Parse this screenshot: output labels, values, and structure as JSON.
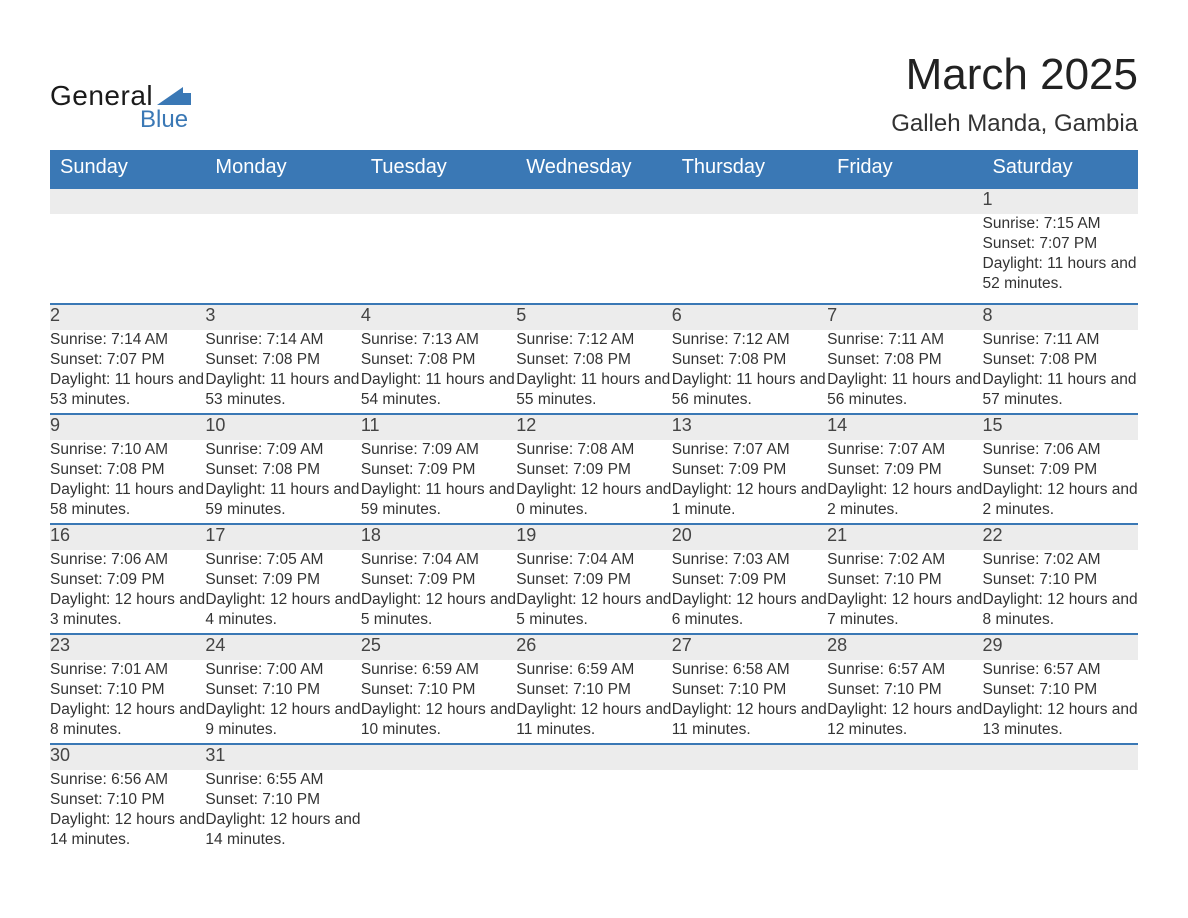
{
  "logo": {
    "text_general": "General",
    "text_blue": "Blue",
    "mark_color": "#3a78b5"
  },
  "title": "March 2025",
  "location": "Galleh Manda, Gambia",
  "colors": {
    "header_bg": "#3a78b5",
    "header_text": "#ffffff",
    "daynum_bg": "#ececec",
    "row_border": "#3a78b5",
    "body_text": "#333333",
    "page_bg": "#ffffff"
  },
  "day_headers": [
    "Sunday",
    "Monday",
    "Tuesday",
    "Wednesday",
    "Thursday",
    "Friday",
    "Saturday"
  ],
  "weeks": [
    [
      null,
      null,
      null,
      null,
      null,
      null,
      {
        "n": "1",
        "sunrise": "Sunrise: 7:15 AM",
        "sunset": "Sunset: 7:07 PM",
        "daylight": "Daylight: 11 hours and 52 minutes."
      }
    ],
    [
      {
        "n": "2",
        "sunrise": "Sunrise: 7:14 AM",
        "sunset": "Sunset: 7:07 PM",
        "daylight": "Daylight: 11 hours and 53 minutes."
      },
      {
        "n": "3",
        "sunrise": "Sunrise: 7:14 AM",
        "sunset": "Sunset: 7:08 PM",
        "daylight": "Daylight: 11 hours and 53 minutes."
      },
      {
        "n": "4",
        "sunrise": "Sunrise: 7:13 AM",
        "sunset": "Sunset: 7:08 PM",
        "daylight": "Daylight: 11 hours and 54 minutes."
      },
      {
        "n": "5",
        "sunrise": "Sunrise: 7:12 AM",
        "sunset": "Sunset: 7:08 PM",
        "daylight": "Daylight: 11 hours and 55 minutes."
      },
      {
        "n": "6",
        "sunrise": "Sunrise: 7:12 AM",
        "sunset": "Sunset: 7:08 PM",
        "daylight": "Daylight: 11 hours and 56 minutes."
      },
      {
        "n": "7",
        "sunrise": "Sunrise: 7:11 AM",
        "sunset": "Sunset: 7:08 PM",
        "daylight": "Daylight: 11 hours and 56 minutes."
      },
      {
        "n": "8",
        "sunrise": "Sunrise: 7:11 AM",
        "sunset": "Sunset: 7:08 PM",
        "daylight": "Daylight: 11 hours and 57 minutes."
      }
    ],
    [
      {
        "n": "9",
        "sunrise": "Sunrise: 7:10 AM",
        "sunset": "Sunset: 7:08 PM",
        "daylight": "Daylight: 11 hours and 58 minutes."
      },
      {
        "n": "10",
        "sunrise": "Sunrise: 7:09 AM",
        "sunset": "Sunset: 7:08 PM",
        "daylight": "Daylight: 11 hours and 59 minutes."
      },
      {
        "n": "11",
        "sunrise": "Sunrise: 7:09 AM",
        "sunset": "Sunset: 7:09 PM",
        "daylight": "Daylight: 11 hours and 59 minutes."
      },
      {
        "n": "12",
        "sunrise": "Sunrise: 7:08 AM",
        "sunset": "Sunset: 7:09 PM",
        "daylight": "Daylight: 12 hours and 0 minutes."
      },
      {
        "n": "13",
        "sunrise": "Sunrise: 7:07 AM",
        "sunset": "Sunset: 7:09 PM",
        "daylight": "Daylight: 12 hours and 1 minute."
      },
      {
        "n": "14",
        "sunrise": "Sunrise: 7:07 AM",
        "sunset": "Sunset: 7:09 PM",
        "daylight": "Daylight: 12 hours and 2 minutes."
      },
      {
        "n": "15",
        "sunrise": "Sunrise: 7:06 AM",
        "sunset": "Sunset: 7:09 PM",
        "daylight": "Daylight: 12 hours and 2 minutes."
      }
    ],
    [
      {
        "n": "16",
        "sunrise": "Sunrise: 7:06 AM",
        "sunset": "Sunset: 7:09 PM",
        "daylight": "Daylight: 12 hours and 3 minutes."
      },
      {
        "n": "17",
        "sunrise": "Sunrise: 7:05 AM",
        "sunset": "Sunset: 7:09 PM",
        "daylight": "Daylight: 12 hours and 4 minutes."
      },
      {
        "n": "18",
        "sunrise": "Sunrise: 7:04 AM",
        "sunset": "Sunset: 7:09 PM",
        "daylight": "Daylight: 12 hours and 5 minutes."
      },
      {
        "n": "19",
        "sunrise": "Sunrise: 7:04 AM",
        "sunset": "Sunset: 7:09 PM",
        "daylight": "Daylight: 12 hours and 5 minutes."
      },
      {
        "n": "20",
        "sunrise": "Sunrise: 7:03 AM",
        "sunset": "Sunset: 7:09 PM",
        "daylight": "Daylight: 12 hours and 6 minutes."
      },
      {
        "n": "21",
        "sunrise": "Sunrise: 7:02 AM",
        "sunset": "Sunset: 7:10 PM",
        "daylight": "Daylight: 12 hours and 7 minutes."
      },
      {
        "n": "22",
        "sunrise": "Sunrise: 7:02 AM",
        "sunset": "Sunset: 7:10 PM",
        "daylight": "Daylight: 12 hours and 8 minutes."
      }
    ],
    [
      {
        "n": "23",
        "sunrise": "Sunrise: 7:01 AM",
        "sunset": "Sunset: 7:10 PM",
        "daylight": "Daylight: 12 hours and 8 minutes."
      },
      {
        "n": "24",
        "sunrise": "Sunrise: 7:00 AM",
        "sunset": "Sunset: 7:10 PM",
        "daylight": "Daylight: 12 hours and 9 minutes."
      },
      {
        "n": "25",
        "sunrise": "Sunrise: 6:59 AM",
        "sunset": "Sunset: 7:10 PM",
        "daylight": "Daylight: 12 hours and 10 minutes."
      },
      {
        "n": "26",
        "sunrise": "Sunrise: 6:59 AM",
        "sunset": "Sunset: 7:10 PM",
        "daylight": "Daylight: 12 hours and 11 minutes."
      },
      {
        "n": "27",
        "sunrise": "Sunrise: 6:58 AM",
        "sunset": "Sunset: 7:10 PM",
        "daylight": "Daylight: 12 hours and 11 minutes."
      },
      {
        "n": "28",
        "sunrise": "Sunrise: 6:57 AM",
        "sunset": "Sunset: 7:10 PM",
        "daylight": "Daylight: 12 hours and 12 minutes."
      },
      {
        "n": "29",
        "sunrise": "Sunrise: 6:57 AM",
        "sunset": "Sunset: 7:10 PM",
        "daylight": "Daylight: 12 hours and 13 minutes."
      }
    ],
    [
      {
        "n": "30",
        "sunrise": "Sunrise: 6:56 AM",
        "sunset": "Sunset: 7:10 PM",
        "daylight": "Daylight: 12 hours and 14 minutes."
      },
      {
        "n": "31",
        "sunrise": "Sunrise: 6:55 AM",
        "sunset": "Sunset: 7:10 PM",
        "daylight": "Daylight: 12 hours and 14 minutes."
      },
      null,
      null,
      null,
      null,
      null
    ]
  ]
}
